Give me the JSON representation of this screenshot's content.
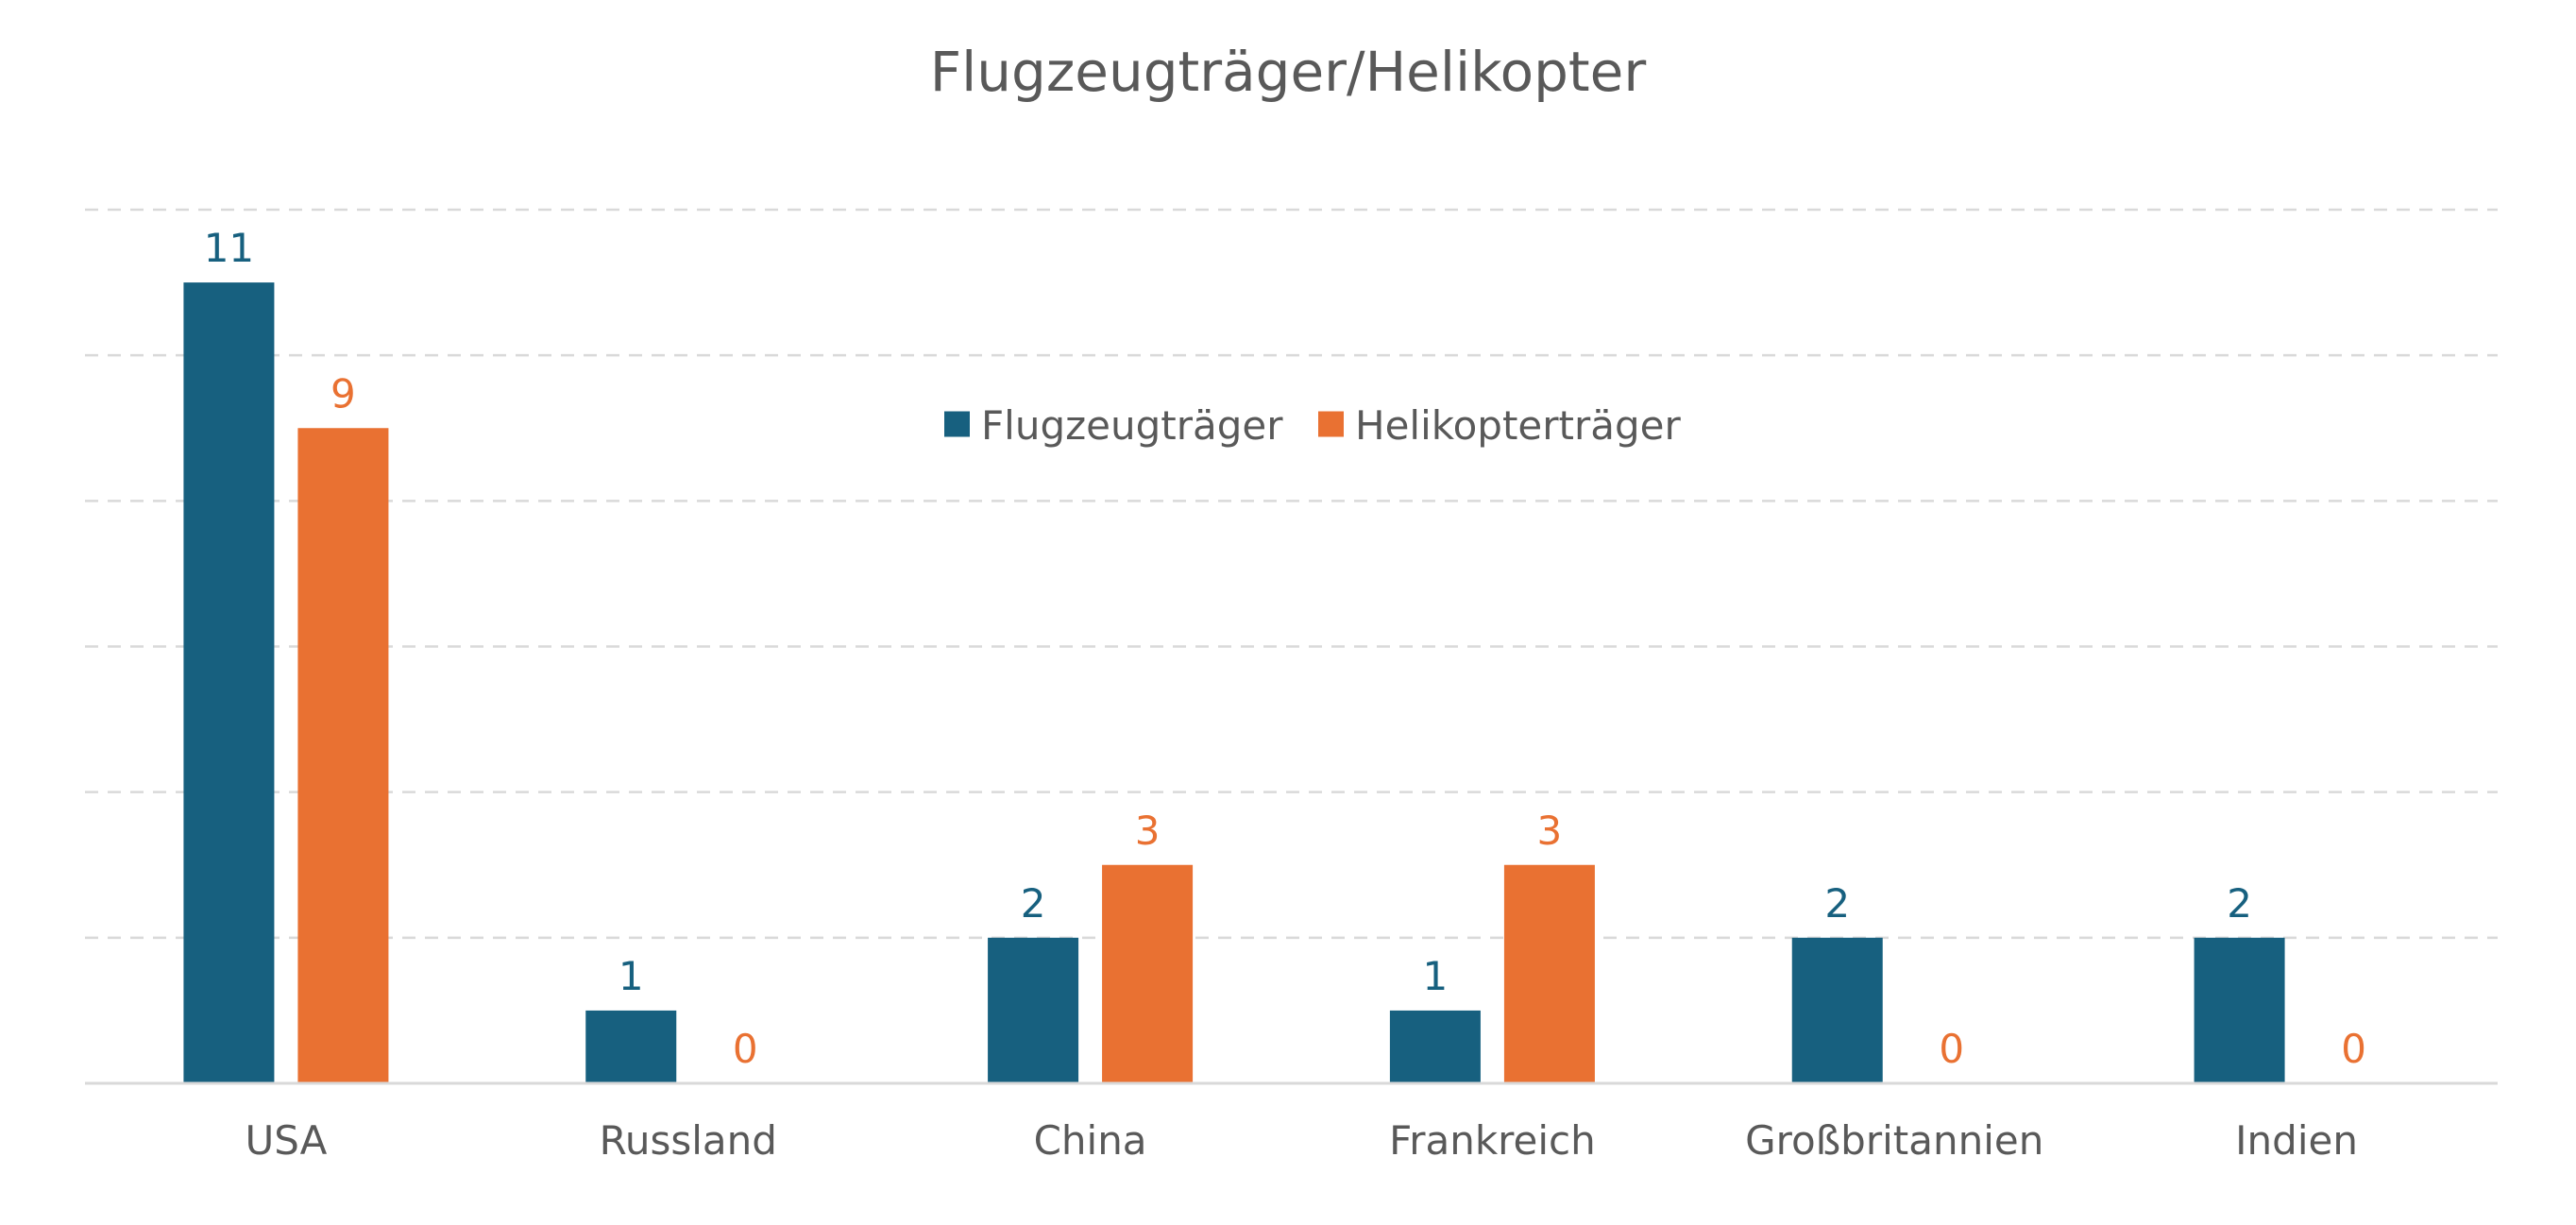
{
  "chart_data": {
    "type": "bar",
    "title": "Flugzeugträger/Helikopter",
    "xlabel": "",
    "ylabel": "",
    "ylim": [
      0,
      12
    ],
    "y_grid_step": 2,
    "grid": true,
    "legend_position": "top-center",
    "categories": [
      "USA",
      "Russland",
      "China",
      "Frankreich",
      "Großbritannien",
      "Indien"
    ],
    "series": [
      {
        "name": "Flugzeugträger",
        "color": "#17607F",
        "values": [
          11,
          1,
          2,
          1,
          2,
          2
        ]
      },
      {
        "name": "Helikopterträger",
        "color": "#E97132",
        "values": [
          9,
          0,
          3,
          3,
          0,
          0
        ]
      }
    ]
  }
}
